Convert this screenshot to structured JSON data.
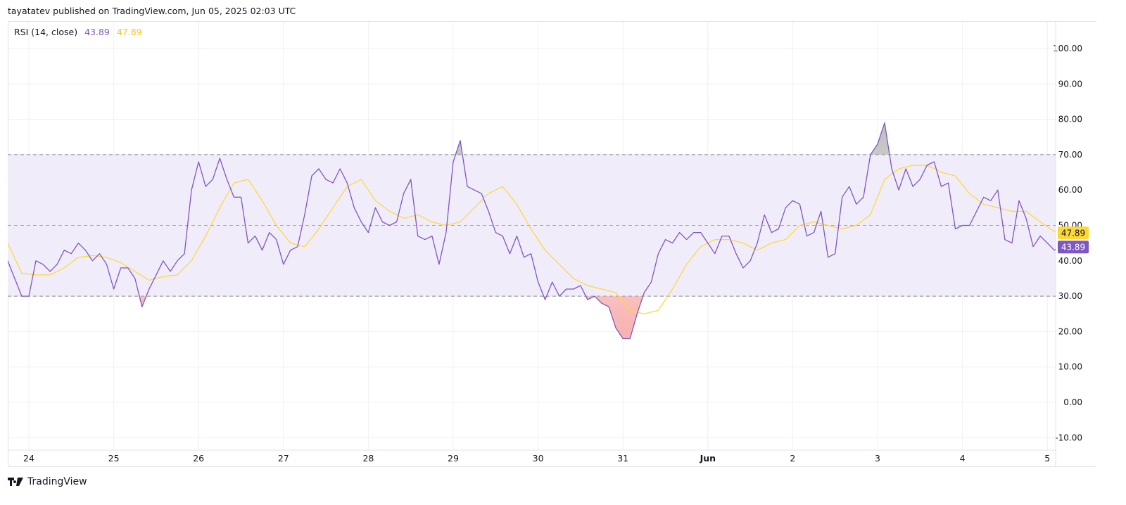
{
  "header": {
    "published": "tayatatev published on TradingView.com, Jun 05, 2025 02:03 UTC"
  },
  "legend": {
    "indicator": "RSI (14, close)",
    "rsi_value": "43.89",
    "ma_value": "47.89"
  },
  "logo": {
    "text": "TradingView"
  },
  "colors": {
    "rsi": "#7e57c2",
    "ma": "#fdd835",
    "band": "#f1ecf9",
    "oversold_fill": "#f7a9a8",
    "overbought_fill": "#b0b0b0",
    "ma_label_bg": "#fdd835",
    "rsi_label_bg": "#7e57c2"
  },
  "chart_data": {
    "type": "line",
    "title": "RSI (14, close)",
    "ylim": [
      -13,
      108
    ],
    "y_ticks": [
      "100.00",
      "90.00",
      "80.00",
      "70.00",
      "60.00",
      "50.00",
      "40.00",
      "30.00",
      "20.00",
      "10.00",
      "0.00",
      "-10.00"
    ],
    "y_tick_values": [
      100,
      90,
      80,
      70,
      60,
      50,
      40,
      30,
      20,
      10,
      0,
      -10
    ],
    "x_ticks": [
      "24",
      "25",
      "26",
      "27",
      "28",
      "29",
      "30",
      "31",
      "Jun",
      "2",
      "3",
      "4",
      "5"
    ],
    "bands": {
      "upper": 70,
      "middle": 50,
      "lower": 30
    },
    "grid": true,
    "last_values": {
      "rsi": "43.89",
      "ma": "47.89"
    },
    "series": [
      {
        "name": "RSI",
        "start": "May 23 18:00",
        "interval_hours": 2,
        "values": [
          40,
          35,
          30,
          30,
          40,
          39,
          37,
          39,
          43,
          42,
          45,
          43,
          40,
          42,
          39,
          32,
          38,
          38,
          35,
          27,
          32,
          36,
          40,
          37,
          40,
          42,
          60,
          68,
          61,
          63,
          69,
          63,
          58,
          58,
          45,
          47,
          43,
          48,
          46,
          39,
          43,
          44,
          53,
          64,
          66,
          63,
          62,
          66,
          62,
          55,
          51,
          48,
          55,
          51,
          50,
          51,
          59,
          63,
          47,
          46,
          47,
          39,
          48,
          68,
          74,
          61,
          60,
          59,
          54,
          48,
          47,
          42,
          47,
          41,
          42,
          34,
          29,
          34,
          30,
          32,
          32,
          33,
          29,
          30,
          28,
          27,
          21,
          18,
          18,
          25,
          31,
          34,
          42,
          46,
          45,
          48,
          46,
          48,
          48,
          45,
          42,
          47,
          47,
          42,
          38,
          40,
          45,
          53,
          48,
          49,
          55,
          57,
          56,
          47,
          48,
          54,
          41,
          42,
          58,
          61,
          56,
          58,
          70,
          73,
          79,
          66,
          60,
          66,
          61,
          63,
          67,
          68,
          61,
          62,
          49,
          50,
          50,
          54,
          58,
          57,
          60,
          46,
          45,
          57,
          52,
          44,
          47,
          45,
          43,
          43.89
        ]
      },
      {
        "name": "RSI-based MA",
        "start": "May 23 18:00",
        "interval_hours": 4,
        "values": [
          45,
          36.5,
          36,
          36,
          38,
          41,
          41.5,
          41,
          39.5,
          37,
          34.5,
          35.5,
          36,
          40,
          47,
          55,
          62,
          63,
          57,
          50,
          45,
          44,
          49,
          55,
          61,
          63,
          57,
          54,
          52,
          53,
          51,
          50,
          51,
          55,
          59,
          61,
          56,
          49,
          43,
          39,
          35,
          33,
          32,
          31,
          26,
          25,
          26,
          32,
          39,
          44,
          46,
          46,
          45,
          43,
          45,
          46,
          50,
          51,
          50,
          49,
          50,
          53,
          63,
          66,
          67,
          67,
          65,
          64,
          59,
          56,
          55,
          54,
          54,
          51,
          48.3,
          47.89
        ]
      }
    ]
  }
}
